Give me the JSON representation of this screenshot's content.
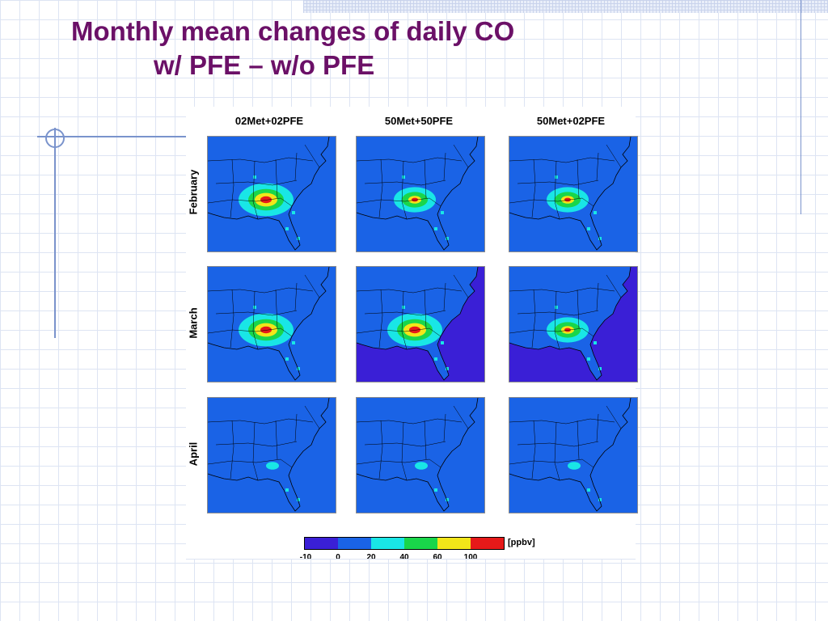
{
  "slide": {
    "title_line1": "Monthly mean changes of daily CO",
    "title_line2": "w/ PFE – w/o PFE"
  },
  "figure": {
    "columns": [
      "02Met+02PFE",
      "50Met+50PFE",
      "50Met+02PFE"
    ],
    "rows": [
      "February",
      "March",
      "April"
    ],
    "colorbar": {
      "unit": "[ppbv]",
      "tick_labels": [
        "-10",
        "0",
        "20",
        "40",
        "60",
        "100"
      ],
      "colors": [
        "#3a1fd6",
        "#1a63e6",
        "#19e6e6",
        "#19d64a",
        "#f2e619",
        "#e61919"
      ]
    },
    "panels": [
      {
        "row": "February",
        "column": "02Met+02PFE",
        "background": "#1a63e6",
        "hotspot_level": "high"
      },
      {
        "row": "February",
        "column": "50Met+50PFE",
        "background": "#1a63e6",
        "hotspot_level": "medium"
      },
      {
        "row": "February",
        "column": "50Met+02PFE",
        "background": "#1a63e6",
        "hotspot_level": "medium"
      },
      {
        "row": "March",
        "column": "02Met+02PFE",
        "background": "#1a63e6",
        "hotspot_level": "high"
      },
      {
        "row": "March",
        "column": "50Met+50PFE",
        "background": "#3a1fd6",
        "hotspot_level": "high"
      },
      {
        "row": "March",
        "column": "50Met+02PFE",
        "background": "#3a1fd6",
        "hotspot_level": "medium"
      },
      {
        "row": "April",
        "column": "02Met+02PFE",
        "background": "#1a63e6",
        "hotspot_level": "low"
      },
      {
        "row": "April",
        "column": "50Met+50PFE",
        "background": "#1a63e6",
        "hotspot_level": "low"
      },
      {
        "row": "April",
        "column": "50Met+02PFE",
        "background": "#1a63e6",
        "hotspot_level": "low"
      }
    ]
  }
}
